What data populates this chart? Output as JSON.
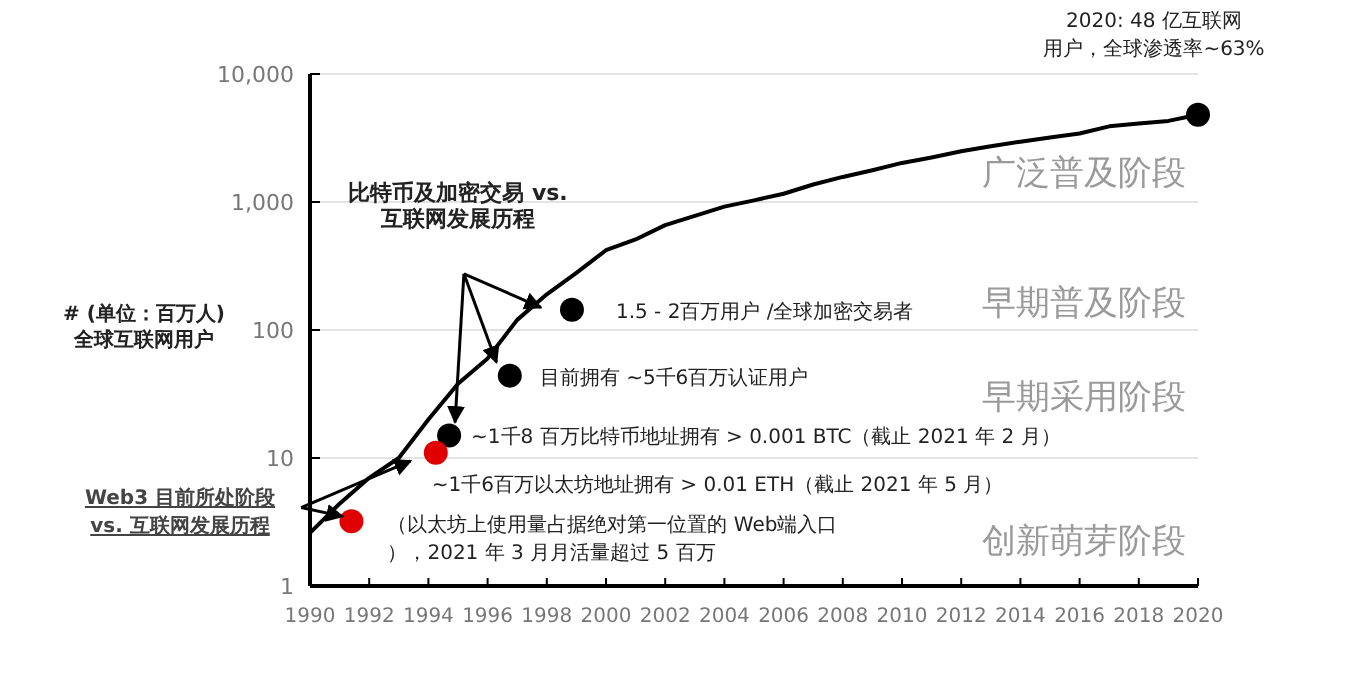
{
  "chart_data": {
    "type": "line",
    "title": "比特币及加密交易 vs.\n互联网发展历程",
    "ylabel": "# (单位：百万人)\n全球互联网用户",
    "log": "y",
    "grid": "y",
    "xlim": [
      1990,
      2020
    ],
    "xticks": [
      1990,
      1992,
      1994,
      1996,
      1998,
      2000,
      2002,
      2004,
      2006,
      2008,
      2010,
      2012,
      2014,
      2016,
      2018,
      2020
    ],
    "ylim": [
      1,
      10000
    ],
    "yticks": [
      1,
      10,
      100,
      {
        "value": 1000,
        "label": "1,000"
      },
      {
        "value": 10000,
        "label": "10,000"
      }
    ],
    "series": [
      {
        "color": "#000000",
        "x": [
          1990,
          1991,
          1992,
          1993,
          1994,
          1995,
          1996,
          1997,
          1998,
          1999,
          2000,
          2001,
          2002,
          2003,
          2004,
          2005,
          2006,
          2007,
          2008,
          2009,
          2010,
          2011,
          2012,
          2013,
          2014,
          2015,
          2016,
          2017,
          2018,
          2019,
          2020
        ],
        "values": [
          2.6,
          4.4,
          7,
          10,
          20,
          38,
          60,
          120,
          190,
          280,
          420,
          510,
          660,
          780,
          920,
          1030,
          1160,
          1370,
          1570,
          1770,
          2020,
          2230,
          2490,
          2730,
          2960,
          3190,
          3430,
          3900,
          4100,
          4300,
          4800
        ]
      },
      {
        "type": "scatter",
        "color": "#000000",
        "x": [
          1998.85,
          1996.75,
          1994.7,
          2020
        ],
        "values": [
          144,
          44,
          15,
          4800
        ]
      },
      {
        "type": "scatter",
        "color": "#e00000",
        "x": [
          1994.25,
          1991.4
        ],
        "values": [
          11,
          3.2
        ]
      }
    ],
    "annotations": [
      {
        "text": "2020: 48 亿互联网用户，全球渗透率~63%",
        "x": 2020,
        "y": 4800
      },
      {
        "text": "1.5 - 2百万用户 /全球加密交易者",
        "x": 1998.85,
        "y": 144
      },
      {
        "text": "目前拥有 ~5千6百万认证用户",
        "x": 1996.75,
        "y": 44
      },
      {
        "text": "~1千8 百万比特币地址拥有 > 0.001 BTC（截止 2021 年 2 月）",
        "x": 1994.7,
        "y": 15
      },
      {
        "text": "~1千6百万以太坊地址拥有 > 0.01 ETH（截止 2021 年 5 月）",
        "x": 1994.25,
        "y": 11
      },
      {
        "text": "（以太坊上使用量占据绝对第一位置的 Web端入口），2021 年 3 月月活量超过 5 百万",
        "x": 1991.4,
        "y": 3.2
      },
      "广泛普及阶段",
      "早期普及阶段",
      "早期采用阶段",
      "创新萌芽阶段",
      "Web3 目前所处阶段\nvs. 互联网发展历程"
    ]
  }
}
